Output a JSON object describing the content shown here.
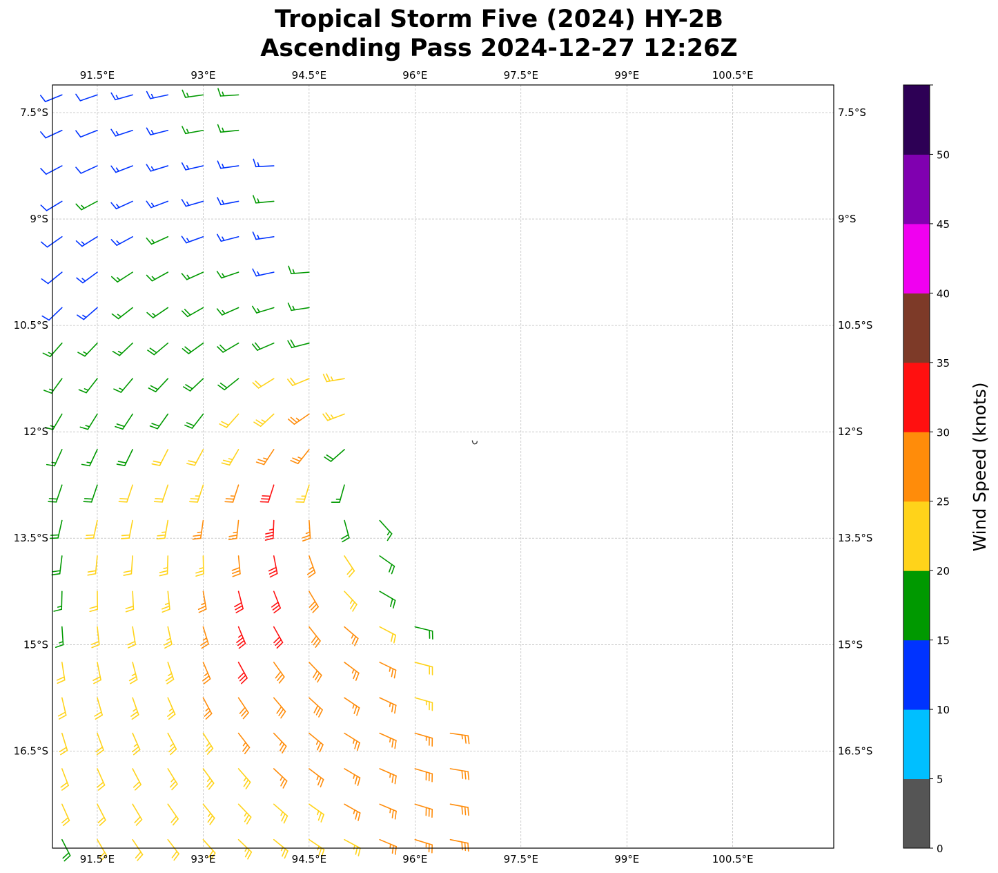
{
  "chart_data": {
    "type": "wind-barb-map",
    "title_line1": "Tropical Storm Five (2024) HY-2B",
    "title_line2": "Ascending Pass 2024-12-27 12:26Z",
    "lon_range": [
      90.865,
      101.93
    ],
    "lat_range": [
      -17.87,
      -7.11
    ],
    "lon_ticks": [
      91.5,
      93,
      94.5,
      96,
      97.5,
      99,
      100.5
    ],
    "lon_tick_labels": [
      "91.5°E",
      "93°E",
      "94.5°E",
      "96°E",
      "97.5°E",
      "99°E",
      "100.5°E"
    ],
    "lat_ticks": [
      -7.5,
      -9,
      -10.5,
      -12,
      -13.5,
      -15,
      -16.5
    ],
    "lat_tick_labels": [
      "7.5°S",
      "9°S",
      "10.5°S",
      "12°S",
      "13.5°S",
      "15°S",
      "16.5°S"
    ],
    "grid": true,
    "storm_center": {
      "lon": 95.8,
      "lat": -12.7
    },
    "barb_lon_start": 91.0,
    "barb_spacing_deg": 0.5,
    "barb_rows": [
      {
        "lat": -7.25,
        "speeds_kt": [
          12,
          12,
          13,
          14,
          16,
          17
        ]
      },
      {
        "lat": -7.75,
        "speeds_kt": [
          12,
          12,
          13,
          14,
          15,
          17
        ]
      },
      {
        "lat": -8.25,
        "speeds_kt": [
          12,
          12,
          13,
          13,
          14,
          14,
          14
        ]
      },
      {
        "lat": -8.75,
        "speeds_kt": [
          12,
          15,
          13,
          13,
          14,
          14,
          16
        ]
      },
      {
        "lat": -9.25,
        "speeds_kt": [
          12,
          13,
          14,
          15,
          14,
          14,
          14
        ]
      },
      {
        "lat": -9.75,
        "speeds_kt": [
          11,
          13,
          16,
          17,
          16,
          16,
          14,
          16
        ]
      },
      {
        "lat": -10.25,
        "speeds_kt": [
          12,
          14,
          17,
          17,
          18,
          17,
          17,
          17
        ]
      },
      {
        "lat": -10.75,
        "speeds_kt": [
          16,
          16,
          17,
          18,
          18,
          18,
          18,
          18
        ]
      },
      {
        "lat": -11.25,
        "speeds_kt": [
          16,
          17,
          17,
          18,
          18,
          18,
          22,
          22,
          23
        ]
      },
      {
        "lat": -11.75,
        "speeds_kt": [
          17,
          17,
          18,
          18,
          19,
          21,
          23,
          26,
          24
        ]
      },
      {
        "lat": -12.25,
        "speeds_kt": [
          16,
          17,
          18,
          20,
          22,
          24,
          27,
          27,
          18
        ]
      },
      {
        "lat": -12.75,
        "speeds_kt": [
          18,
          19,
          21,
          22,
          24,
          26,
          30,
          24,
          16
        ]
      },
      {
        "lat": -13.25,
        "speeds_kt": [
          18,
          21,
          22,
          23,
          25,
          27,
          33,
          27,
          19,
          17
        ]
      },
      {
        "lat": -13.75,
        "speeds_kt": [
          18,
          21,
          22,
          23,
          24,
          28,
          30,
          27,
          21,
          18
        ]
      },
      {
        "lat": -14.25,
        "speeds_kt": [
          17,
          21,
          22,
          23,
          27,
          32,
          30,
          28,
          24,
          18
        ]
      },
      {
        "lat": -14.75,
        "speeds_kt": [
          17,
          21,
          22,
          23,
          27,
          34,
          31,
          28,
          26,
          22,
          18
        ]
      },
      {
        "lat": -15.25,
        "speeds_kt": [
          21,
          22,
          23,
          24,
          27,
          32,
          29,
          28,
          27,
          25,
          22
        ]
      },
      {
        "lat": -15.75,
        "speeds_kt": [
          21,
          22,
          23,
          24,
          26,
          29,
          28,
          28,
          27,
          26,
          24
        ]
      },
      {
        "lat": -16.25,
        "speeds_kt": [
          22,
          22,
          23,
          23,
          24,
          26,
          27,
          27,
          27,
          27,
          26,
          27
        ]
      },
      {
        "lat": -16.75,
        "speeds_kt": [
          22,
          22,
          22,
          23,
          23,
          24,
          25,
          26,
          27,
          27,
          28,
          28
        ]
      },
      {
        "lat": -17.25,
        "speeds_kt": [
          22,
          22,
          22,
          22,
          23,
          23,
          24,
          24,
          25,
          26,
          28,
          29
        ]
      },
      {
        "lat": -17.75,
        "speeds_kt": [
          18,
          22,
          22,
          22,
          22,
          23,
          23,
          24,
          24,
          25,
          26,
          28
        ]
      }
    ],
    "colorbar": {
      "label": "Wind Speed (knots)",
      "bounds": [
        0,
        5,
        10,
        15,
        20,
        25,
        30,
        35,
        40,
        45,
        50,
        55
      ],
      "tick_labels": [
        "0",
        "5",
        "10",
        "15",
        "20",
        "25",
        "30",
        "35",
        "40",
        "45",
        "50"
      ],
      "colors": [
        "#555555",
        "#00bfff",
        "#0033ff",
        "#009900",
        "#ffd31a",
        "#ff8c0a",
        "#ff1010",
        "#7d3a28",
        "#f000f0",
        "#8000b0",
        "#2d0055"
      ]
    }
  }
}
